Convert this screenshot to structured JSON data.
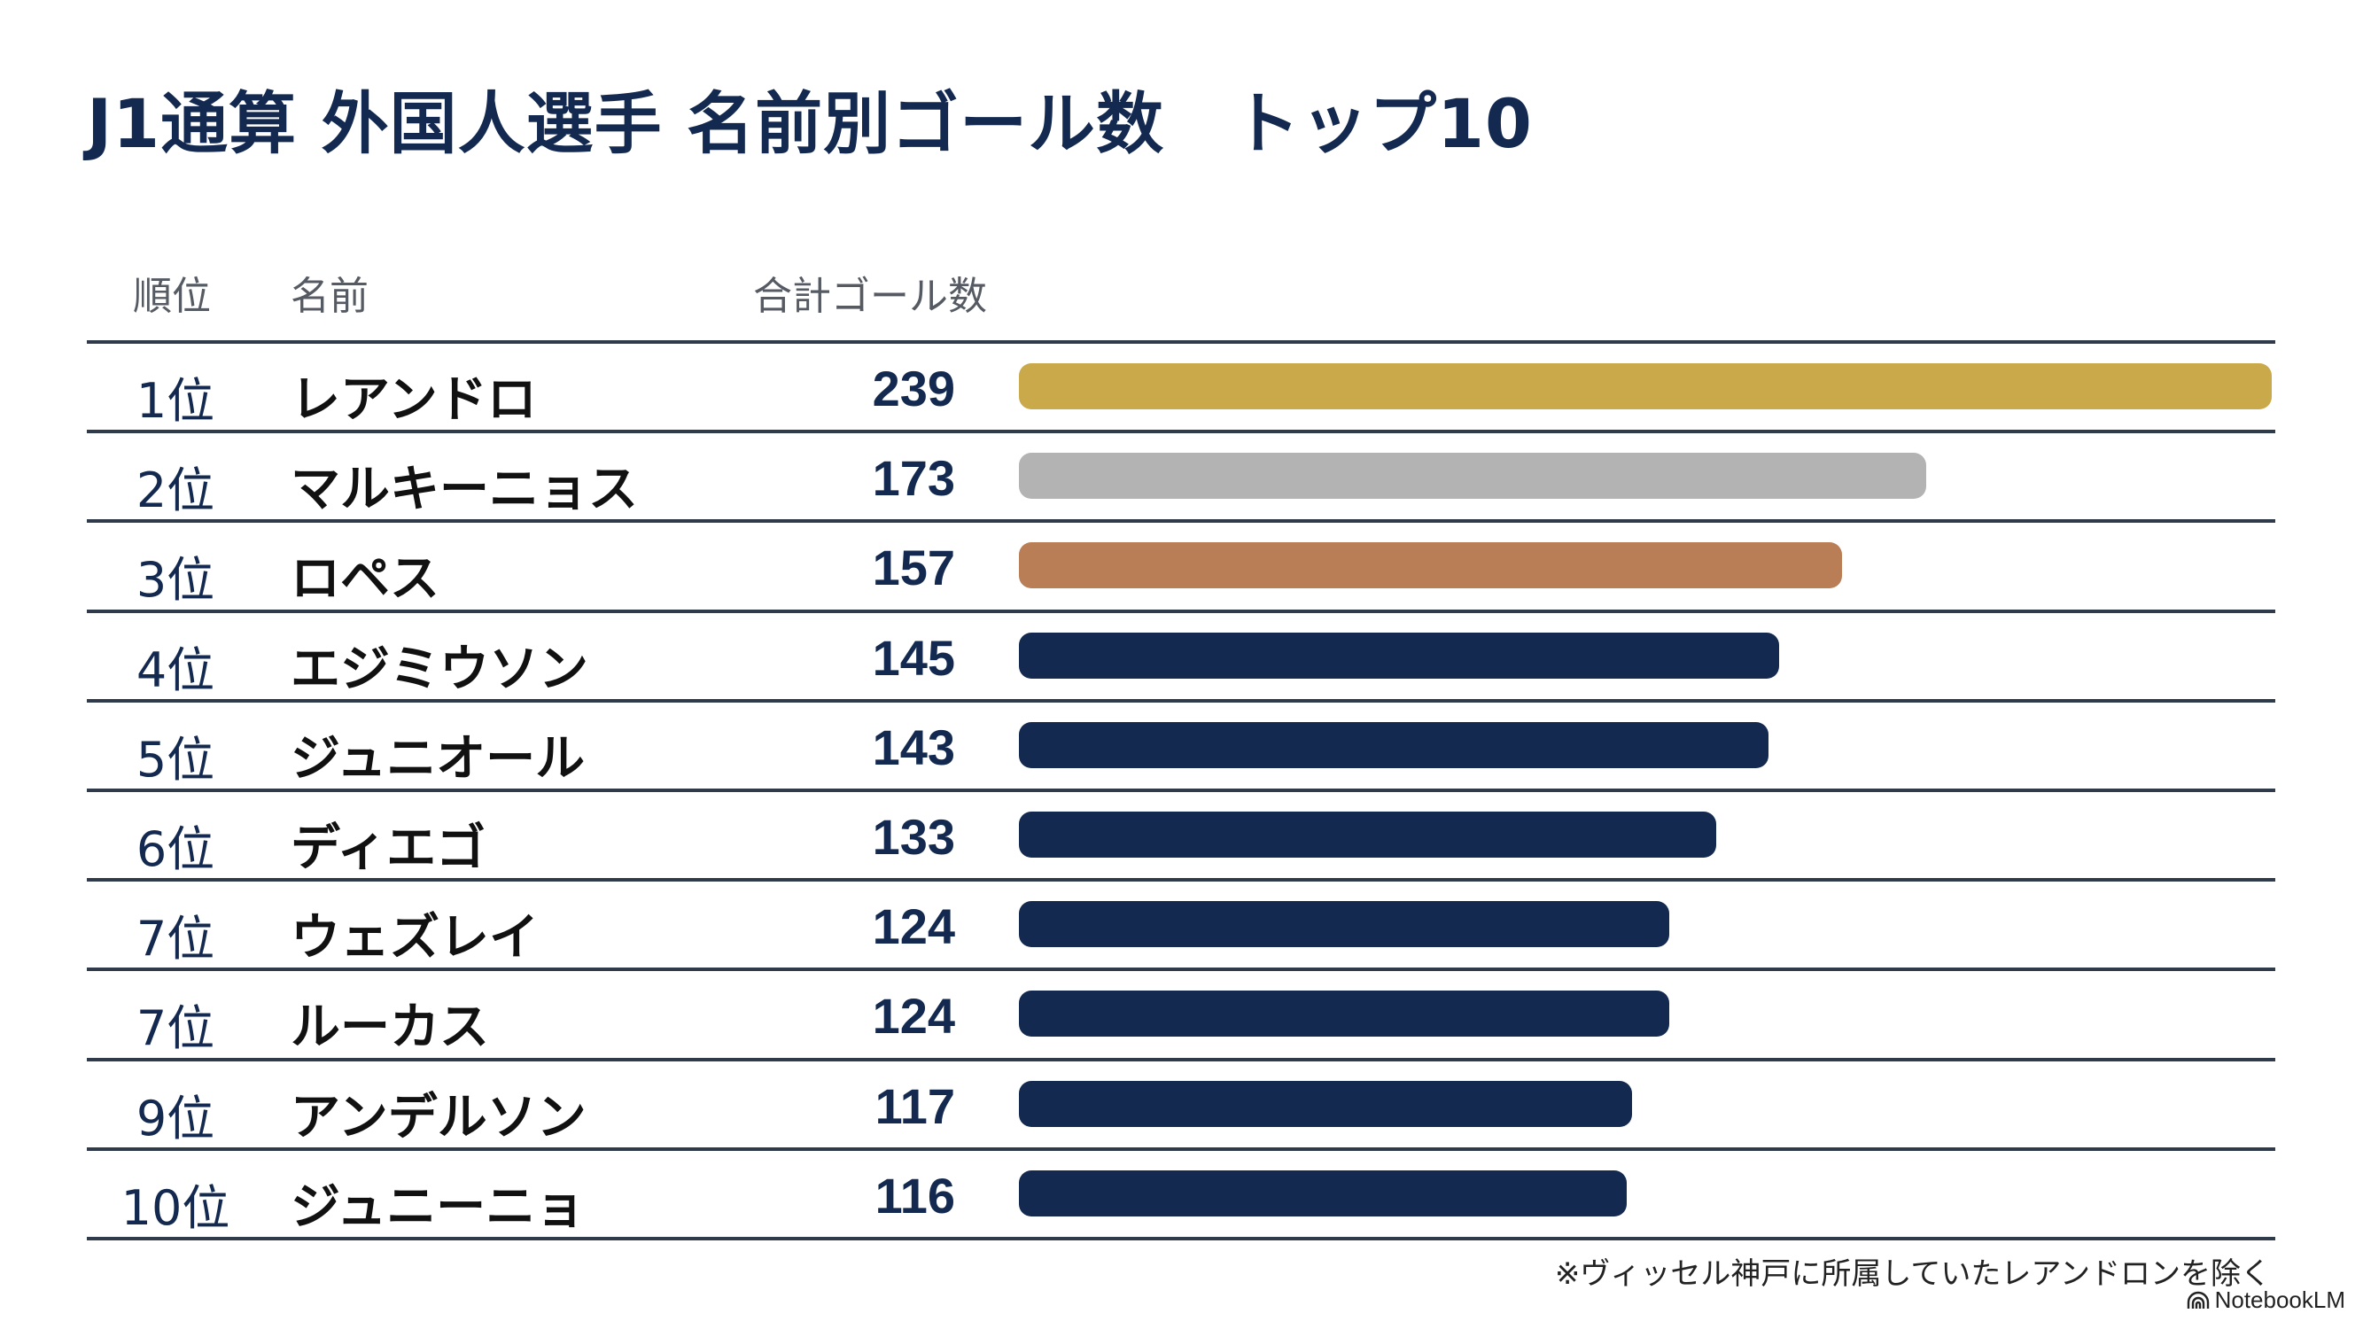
{
  "title": "J1通算 外国人選手 名前別ゴール数　トップ10",
  "headers": {
    "rank": "順位",
    "name": "名前",
    "goals": "合計ゴール数"
  },
  "colors": {
    "gold": "#c9a94a",
    "silver": "#b3b3b3",
    "bronze": "#b97e55",
    "navy": "#13294f"
  },
  "rows": [
    {
      "rank": "1位",
      "name": "レアンドロ",
      "goals": "239",
      "color": "#c9a94a"
    },
    {
      "rank": "2位",
      "name": "マルキーニョス",
      "goals": "173",
      "color": "#b3b3b3"
    },
    {
      "rank": "3位",
      "name": "ロペス",
      "goals": "157",
      "color": "#b97e55"
    },
    {
      "rank": "4位",
      "name": "エジミウソン",
      "goals": "145",
      "color": "#13294f"
    },
    {
      "rank": "5位",
      "name": "ジュニオール",
      "goals": "143",
      "color": "#13294f"
    },
    {
      "rank": "6位",
      "name": "ディエゴ",
      "goals": "133",
      "color": "#13294f"
    },
    {
      "rank": "7位",
      "name": "ウェズレイ",
      "goals": "124",
      "color": "#13294f"
    },
    {
      "rank": "7位",
      "name": "ルーカス",
      "goals": "124",
      "color": "#13294f"
    },
    {
      "rank": "9位",
      "name": "アンデルソン",
      "goals": "117",
      "color": "#13294f"
    },
    {
      "rank": "10位",
      "name": "ジュニーニョ",
      "goals": "116",
      "color": "#13294f"
    }
  ],
  "footnote": "※ヴィッセル神戸に所属していたレアンドロンを除く",
  "brand": "NotebookLM",
  "chart_data": {
    "type": "bar",
    "orientation": "horizontal",
    "title": "J1通算 外国人選手 名前別ゴール数　トップ10",
    "categories": [
      "レアンドロ",
      "マルキーニョス",
      "ロペス",
      "エジミウソン",
      "ジュニオール",
      "ディエゴ",
      "ウェズレイ",
      "ルーカス",
      "アンデルソン",
      "ジュニーニョ"
    ],
    "ranks": [
      "1位",
      "2位",
      "3位",
      "4位",
      "5位",
      "6位",
      "7位",
      "7位",
      "9位",
      "10位"
    ],
    "values": [
      239,
      173,
      157,
      145,
      143,
      133,
      124,
      124,
      117,
      116
    ],
    "xlabel": "合計ゴール数",
    "ylabel": "名前",
    "xlim": [
      0,
      239
    ],
    "grid": false,
    "legend": "none",
    "note": "※ヴィッセル神戸に所属していたレアンドロンを除く"
  }
}
